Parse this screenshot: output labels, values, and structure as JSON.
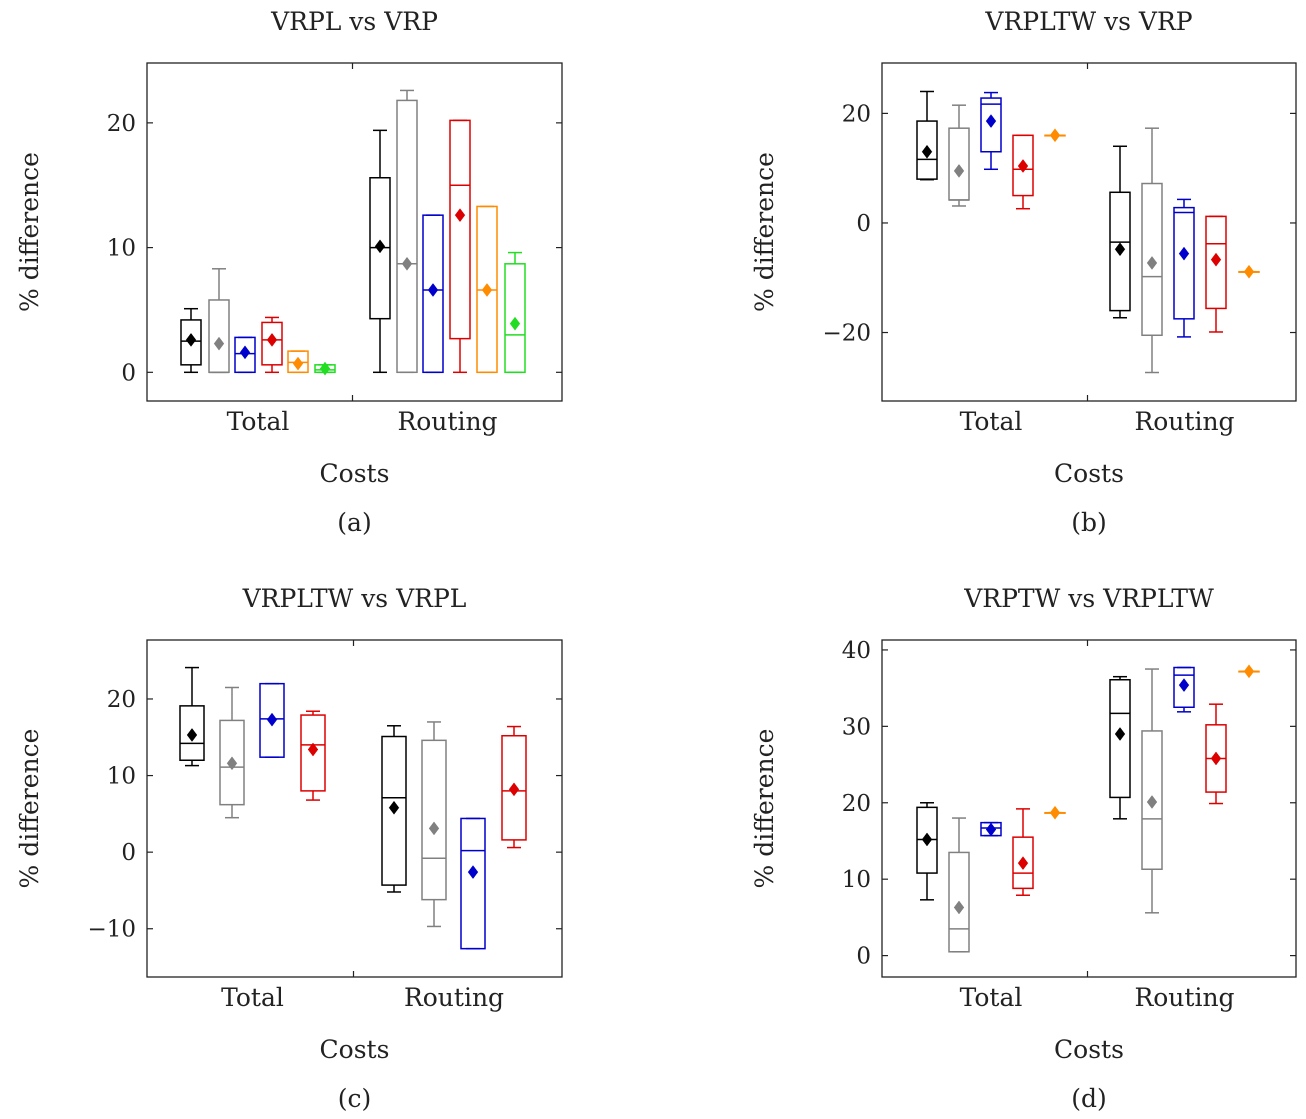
{
  "chart_data": [
    {
      "type": "box",
      "title": "VRPL vs VRP",
      "caption": "(a)",
      "xlabel": "Costs",
      "ylabel": "% difference",
      "categories": [
        "Total",
        "Routing"
      ],
      "ylim": [
        -2.3,
        24.8
      ],
      "yticks": [
        0,
        10,
        20
      ],
      "grid": false,
      "groups": [
        [
          {
            "color": "#000000",
            "whisker_low": 0,
            "q1": 0.6,
            "median": 2.5,
            "q3": 4.2,
            "whisker_high": 5.1,
            "mean": 2.6
          },
          {
            "color": "#808080",
            "whisker_low": 0,
            "q1": 0,
            "median": 0,
            "q3": 5.8,
            "whisker_high": 8.3,
            "mean": 2.3
          },
          {
            "color": "#0000cc",
            "whisker_low": 0,
            "q1": 0,
            "median": 1.5,
            "q3": 2.8,
            "whisker_high": 2.8,
            "mean": 1.6
          },
          {
            "color": "#dd0000",
            "whisker_low": 0,
            "q1": 0.6,
            "median": 2.6,
            "q3": 4.0,
            "whisker_high": 4.4,
            "mean": 2.6
          },
          {
            "color": "#ff8c00",
            "whisker_low": 0,
            "q1": 0,
            "median": 0.8,
            "q3": 1.7,
            "whisker_high": 1.7,
            "mean": 0.7
          },
          {
            "color": "#22dd22",
            "whisker_low": 0,
            "q1": 0,
            "median": 0.2,
            "q3": 0.6,
            "whisker_high": 0.6,
            "mean": 0.3
          }
        ],
        [
          {
            "color": "#000000",
            "whisker_low": 0,
            "q1": 4.3,
            "median": 10.0,
            "q3": 15.6,
            "whisker_high": 19.4,
            "mean": 10.1
          },
          {
            "color": "#808080",
            "whisker_low": 0,
            "q1": 0,
            "median": 8.7,
            "q3": 21.8,
            "whisker_high": 22.6,
            "mean": 8.7
          },
          {
            "color": "#0000cc",
            "whisker_low": 0,
            "q1": 0,
            "median": 6.6,
            "q3": 12.6,
            "whisker_high": 12.6,
            "mean": 6.6
          },
          {
            "color": "#dd0000",
            "whisker_low": 0,
            "q1": 2.7,
            "median": 15.0,
            "q3": 20.2,
            "whisker_high": 20.2,
            "mean": 12.6
          },
          {
            "color": "#ff8c00",
            "whisker_low": 0,
            "q1": 0,
            "median": 6.6,
            "q3": 13.3,
            "whisker_high": 13.3,
            "mean": 6.6
          },
          {
            "color": "#22dd22",
            "whisker_low": 0,
            "q1": 0,
            "median": 3.0,
            "q3": 8.7,
            "whisker_high": 9.6,
            "mean": 3.9
          }
        ]
      ]
    },
    {
      "type": "box",
      "title": "VRPLTW vs VRP",
      "caption": "(b)",
      "xlabel": "Costs",
      "ylabel": "% difference",
      "categories": [
        "Total",
        "Routing"
      ],
      "ylim": [
        -32.5,
        29.2
      ],
      "yticks": [
        -20,
        0,
        20
      ],
      "grid": false,
      "groups": [
        [
          {
            "color": "#000000",
            "whisker_low": 7.9,
            "q1": 8.0,
            "median": 11.6,
            "q3": 18.6,
            "whisker_high": 24.0,
            "mean": 13.0
          },
          {
            "color": "#808080",
            "whisker_low": 3.1,
            "q1": 4.2,
            "median": 4.2,
            "q3": 17.3,
            "whisker_high": 21.5,
            "mean": 9.5
          },
          {
            "color": "#0000cc",
            "whisker_low": 9.8,
            "q1": 13.0,
            "median": 21.7,
            "q3": 22.8,
            "whisker_high": 23.8,
            "mean": 18.6
          },
          {
            "color": "#dd0000",
            "whisker_low": 2.6,
            "q1": 5.0,
            "median": 9.8,
            "q3": 16.0,
            "whisker_high": 16.0,
            "mean": 10.4
          },
          {
            "color": "#ff8c00",
            "whisker_low": 16.0,
            "q1": 16.0,
            "median": 16.0,
            "q3": 16.0,
            "whisker_high": 16.0,
            "mean": 16.0
          }
        ],
        [
          {
            "color": "#000000",
            "whisker_low": -17.3,
            "q1": -16.0,
            "median": -3.5,
            "q3": 5.6,
            "whisker_high": 14.0,
            "mean": -4.8
          },
          {
            "color": "#808080",
            "whisker_low": -27.3,
            "q1": -20.5,
            "median": -9.8,
            "q3": 7.2,
            "whisker_high": 17.3,
            "mean": -7.3
          },
          {
            "color": "#0000cc",
            "whisker_low": -20.8,
            "q1": -17.5,
            "median": 1.9,
            "q3": 2.8,
            "whisker_high": 4.3,
            "mean": -5.6
          },
          {
            "color": "#dd0000",
            "whisker_low": -19.9,
            "q1": -15.6,
            "median": -3.8,
            "q3": 1.2,
            "whisker_high": 1.2,
            "mean": -6.7
          },
          {
            "color": "#ff8c00",
            "whisker_low": -8.9,
            "q1": -8.9,
            "median": -8.9,
            "q3": -8.9,
            "whisker_high": -8.9,
            "mean": -8.9
          }
        ]
      ]
    },
    {
      "type": "box",
      "title": "VRPLTW vs VRPL",
      "caption": "(c)",
      "xlabel": "Costs",
      "ylabel": "% difference",
      "categories": [
        "Total",
        "Routing"
      ],
      "ylim": [
        -16.3,
        27.7
      ],
      "yticks": [
        -10,
        0,
        10,
        20
      ],
      "grid": false,
      "groups": [
        [
          {
            "color": "#000000",
            "whisker_low": 11.3,
            "q1": 12.0,
            "median": 14.2,
            "q3": 19.1,
            "whisker_high": 24.1,
            "mean": 15.3
          },
          {
            "color": "#808080",
            "whisker_low": 4.5,
            "q1": 6.2,
            "median": 11.1,
            "q3": 17.2,
            "whisker_high": 21.5,
            "mean": 11.6
          },
          {
            "color": "#0000cc",
            "whisker_low": 12.4,
            "q1": 12.4,
            "median": 17.4,
            "q3": 22.0,
            "whisker_high": 22.0,
            "mean": 17.3
          },
          {
            "color": "#dd0000",
            "whisker_low": 6.8,
            "q1": 8.0,
            "median": 14.0,
            "q3": 17.9,
            "whisker_high": 18.4,
            "mean": 13.4
          }
        ],
        [
          {
            "color": "#000000",
            "whisker_low": -5.2,
            "q1": -4.3,
            "median": 7.1,
            "q3": 15.1,
            "whisker_high": 16.5,
            "mean": 5.8
          },
          {
            "color": "#808080",
            "whisker_low": -9.7,
            "q1": -6.2,
            "median": -0.8,
            "q3": 14.6,
            "whisker_high": 17.0,
            "mean": 3.1
          },
          {
            "color": "#0000cc",
            "whisker_low": -12.6,
            "q1": -12.6,
            "median": 0.2,
            "q3": 4.4,
            "whisker_high": 4.4,
            "mean": -2.6
          },
          {
            "color": "#dd0000",
            "whisker_low": 0.6,
            "q1": 1.6,
            "median": 8.0,
            "q3": 15.2,
            "whisker_high": 16.4,
            "mean": 8.2
          }
        ]
      ]
    },
    {
      "type": "box",
      "title": "VRPTW vs VRPLTW",
      "caption": "(d)",
      "xlabel": "Costs",
      "ylabel": "% difference",
      "categories": [
        "Total",
        "Routing"
      ],
      "ylim": [
        -2.8,
        41.3
      ],
      "yticks": [
        0,
        10,
        20,
        30,
        40
      ],
      "grid": false,
      "groups": [
        [
          {
            "color": "#000000",
            "whisker_low": 7.3,
            "q1": 10.8,
            "median": 15.2,
            "q3": 19.4,
            "whisker_high": 20.0,
            "mean": 15.2
          },
          {
            "color": "#808080",
            "whisker_low": 0.5,
            "q1": 0.5,
            "median": 3.5,
            "q3": 13.5,
            "whisker_high": 18.0,
            "mean": 6.3
          },
          {
            "color": "#0000cc",
            "whisker_low": 15.7,
            "q1": 15.7,
            "median": 16.7,
            "q3": 17.4,
            "whisker_high": 17.4,
            "mean": 16.5
          },
          {
            "color": "#dd0000",
            "whisker_low": 7.9,
            "q1": 8.8,
            "median": 10.8,
            "q3": 15.5,
            "whisker_high": 19.2,
            "mean": 12.1
          },
          {
            "color": "#ff8c00",
            "whisker_low": 18.7,
            "q1": 18.7,
            "median": 18.7,
            "q3": 18.7,
            "whisker_high": 18.7,
            "mean": 18.7
          }
        ],
        [
          {
            "color": "#000000",
            "whisker_low": 17.9,
            "q1": 20.7,
            "median": 31.7,
            "q3": 36.1,
            "whisker_high": 36.5,
            "mean": 29.0
          },
          {
            "color": "#808080",
            "whisker_low": 5.6,
            "q1": 11.3,
            "median": 17.9,
            "q3": 29.4,
            "whisker_high": 37.5,
            "mean": 20.1
          },
          {
            "color": "#0000cc",
            "whisker_low": 31.9,
            "q1": 32.5,
            "median": 36.7,
            "q3": 37.7,
            "whisker_high": 37.7,
            "mean": 35.4
          },
          {
            "color": "#dd0000",
            "whisker_low": 19.9,
            "q1": 21.4,
            "median": 25.8,
            "q3": 30.2,
            "whisker_high": 32.9,
            "mean": 25.8
          },
          {
            "color": "#ff8c00",
            "whisker_low": 37.2,
            "q1": 37.2,
            "median": 37.2,
            "q3": 37.2,
            "whisker_high": 37.2,
            "mean": 37.2
          }
        ]
      ]
    }
  ]
}
